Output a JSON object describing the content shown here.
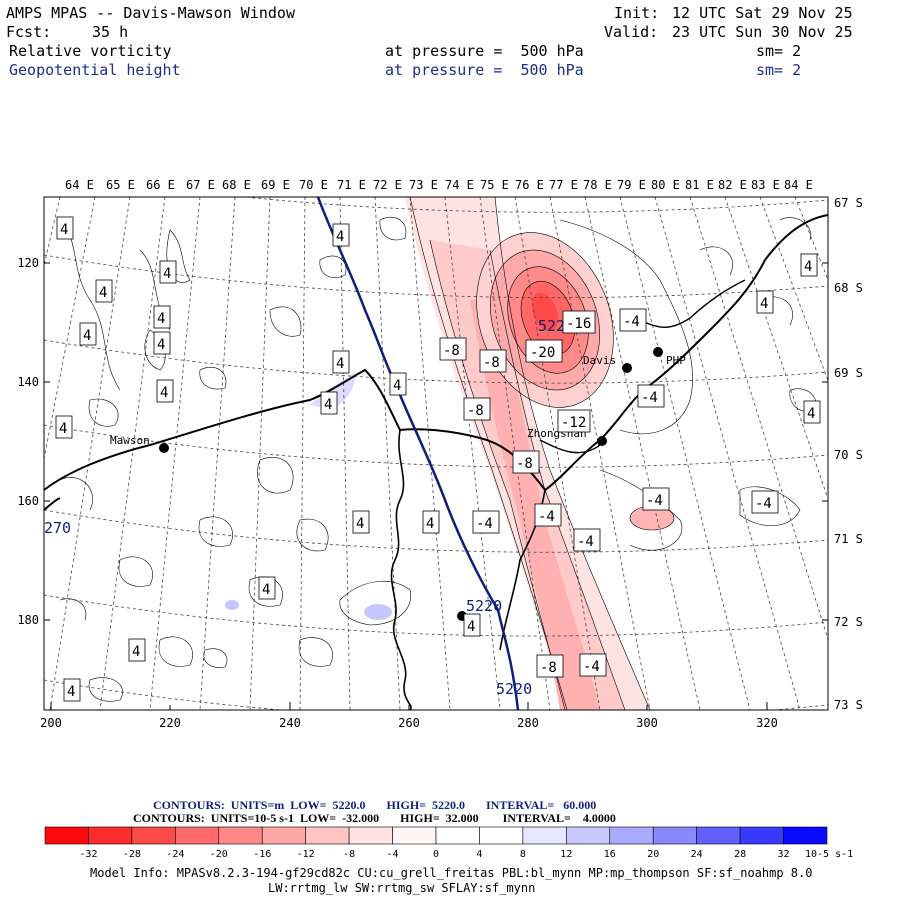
{
  "header": {
    "title": "AMPS MPAS -- Davis-Mawson Window",
    "init_label": "Init:",
    "init_value": "12 UTC Sat 29 Nov 25",
    "fcst_label": "Fcst:",
    "fcst_value": "35 h",
    "valid_label": "Valid:",
    "valid_value": "23 UTC Sun 30 Nov 25",
    "field1_name": "Relative vorticity",
    "field1_level": "at pressure =  500 hPa",
    "field1_sm": "sm= 2",
    "field2_name": "Geopotential height",
    "field2_level": "at pressure =  500 hPa",
    "field2_sm": "sm= 2"
  },
  "map": {
    "lon_labels": [
      "64 E",
      "65 E",
      "66 E",
      "67 E",
      "68 E",
      "69 E",
      "70 E",
      "71 E",
      "72 E",
      "73 E",
      "74 E",
      "75 E",
      "76 E",
      "77 E",
      "78 E",
      "79 E",
      "80 E",
      "81 E",
      "82 E",
      "83 E",
      "84 E"
    ],
    "lat_labels": [
      "67 S",
      "68 S",
      "69 S",
      "70 S",
      "71 S",
      "72 S",
      "73 S"
    ],
    "x_ticks": [
      "200",
      "220",
      "240",
      "260",
      "280",
      "300",
      "320"
    ],
    "y_ticks": [
      "120",
      "140",
      "160",
      "180"
    ],
    "stations": [
      "Mawson",
      "Davis",
      "Zhongshan",
      "PHP"
    ],
    "edge_label": "270",
    "height_labels": [
      "5220",
      "5220",
      "5220"
    ],
    "vort_labels": {
      "pos4": "4",
      "neg4": "-4",
      "neg8": "-8",
      "neg12": "-12",
      "neg16": "-16",
      "neg20": "-20"
    }
  },
  "legend": {
    "contours1_line": "CONTOURS:  UNITS=m  LOW=  5220.0       HIGH=  5220.0       INTERVAL=   60.000",
    "contours2_line": "CONTOURS:  UNITS=10-5 s-1  LOW=  -32.000       HIGH=  32.000        INTERVAL=    4.0000",
    "ticks": [
      "-32",
      "-28",
      "-24",
      "-20",
      "-16",
      "-12",
      "-8",
      "-4",
      "0",
      "4",
      "8",
      "12",
      "16",
      "20",
      "24",
      "28",
      "32"
    ],
    "units": "10-5 s-1",
    "colors": [
      "#ff1a1a",
      "#ff3b3b",
      "#ff5a5a",
      "#ff7878",
      "#ff9898",
      "#ffb8b8",
      "#ffd6d6",
      "#fff0f0",
      "#ffffff",
      "#ffffff",
      "#eeeeff",
      "#d0d0ff",
      "#b0b0ff",
      "#9090ff",
      "#6a6aff",
      "#4040ff",
      "#0a0aff"
    ]
  },
  "footer": {
    "model_info": "Model Info: MPASv8.2.3-194-gf29cd82c CU:cu_grell_freitas PBL:bl_mynn MP:mp_thompson SF:sf_noahmp 8.0",
    "model_info2": "LW:rrtmg_lw SW:rrtmg_sw SFLAY:sf_mynn"
  }
}
